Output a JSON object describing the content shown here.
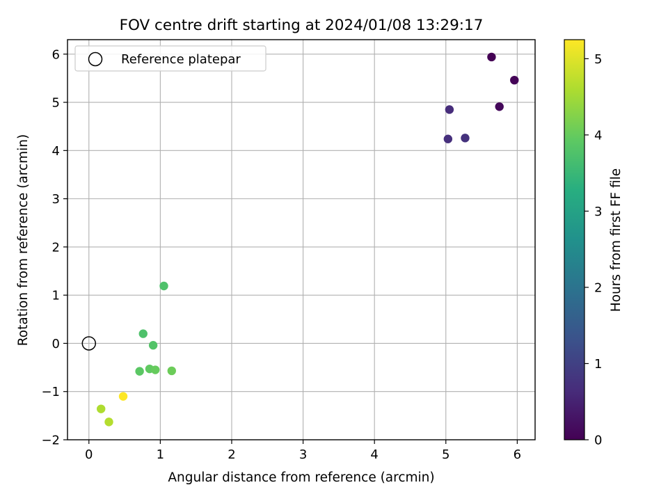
{
  "chart_data": {
    "type": "scatter",
    "title": "FOV centre drift starting at 2024/01/08 13:29:17",
    "xlabel": "Angular distance from reference (arcmin)",
    "ylabel": "Rotation from reference (arcmin)",
    "xlim": [
      -0.3,
      6.25
    ],
    "ylim": [
      -2.0,
      6.3
    ],
    "xticks": [
      0,
      1,
      2,
      3,
      4,
      5,
      6
    ],
    "xtick_labels": [
      "0",
      "1",
      "2",
      "3",
      "4",
      "5",
      "6"
    ],
    "yticks": [
      -2,
      -1,
      0,
      1,
      2,
      3,
      4,
      5,
      6
    ],
    "ytick_labels": [
      "−2",
      "−1",
      "0",
      "1",
      "2",
      "3",
      "4",
      "5",
      "6"
    ],
    "grid": true,
    "legend": {
      "position": "top-left",
      "entries": [
        "Reference platepar"
      ]
    },
    "reference_point": {
      "x": 0,
      "y": 0,
      "label": "Reference platepar"
    },
    "colorbar": {
      "label": "Hours from first FF file",
      "colormap": "viridis",
      "range": [
        0,
        5.25
      ],
      "ticks": [
        0,
        1,
        2,
        3,
        4,
        5
      ],
      "tick_labels": [
        "0",
        "1",
        "2",
        "3",
        "4",
        "5"
      ]
    },
    "points": [
      {
        "x": 5.64,
        "y": 5.94,
        "hours": 0.0
      },
      {
        "x": 5.96,
        "y": 5.46,
        "hours": 0.05
      },
      {
        "x": 5.75,
        "y": 4.91,
        "hours": 0.1
      },
      {
        "x": 5.05,
        "y": 4.85,
        "hours": 0.65
      },
      {
        "x": 5.03,
        "y": 4.24,
        "hours": 0.7
      },
      {
        "x": 5.27,
        "y": 4.26,
        "hours": 0.75
      },
      {
        "x": 1.05,
        "y": 1.19,
        "hours": 3.75
      },
      {
        "x": 0.76,
        "y": 0.2,
        "hours": 3.75
      },
      {
        "x": 0.9,
        "y": -0.04,
        "hours": 3.8
      },
      {
        "x": 0.71,
        "y": -0.58,
        "hours": 3.9
      },
      {
        "x": 0.85,
        "y": -0.53,
        "hours": 3.95
      },
      {
        "x": 0.93,
        "y": -0.55,
        "hours": 4.0
      },
      {
        "x": 1.16,
        "y": -0.57,
        "hours": 4.05
      },
      {
        "x": 0.17,
        "y": -1.36,
        "hours": 4.6
      },
      {
        "x": 0.28,
        "y": -1.63,
        "hours": 4.65
      },
      {
        "x": 0.48,
        "y": -1.1,
        "hours": 5.25
      }
    ]
  }
}
